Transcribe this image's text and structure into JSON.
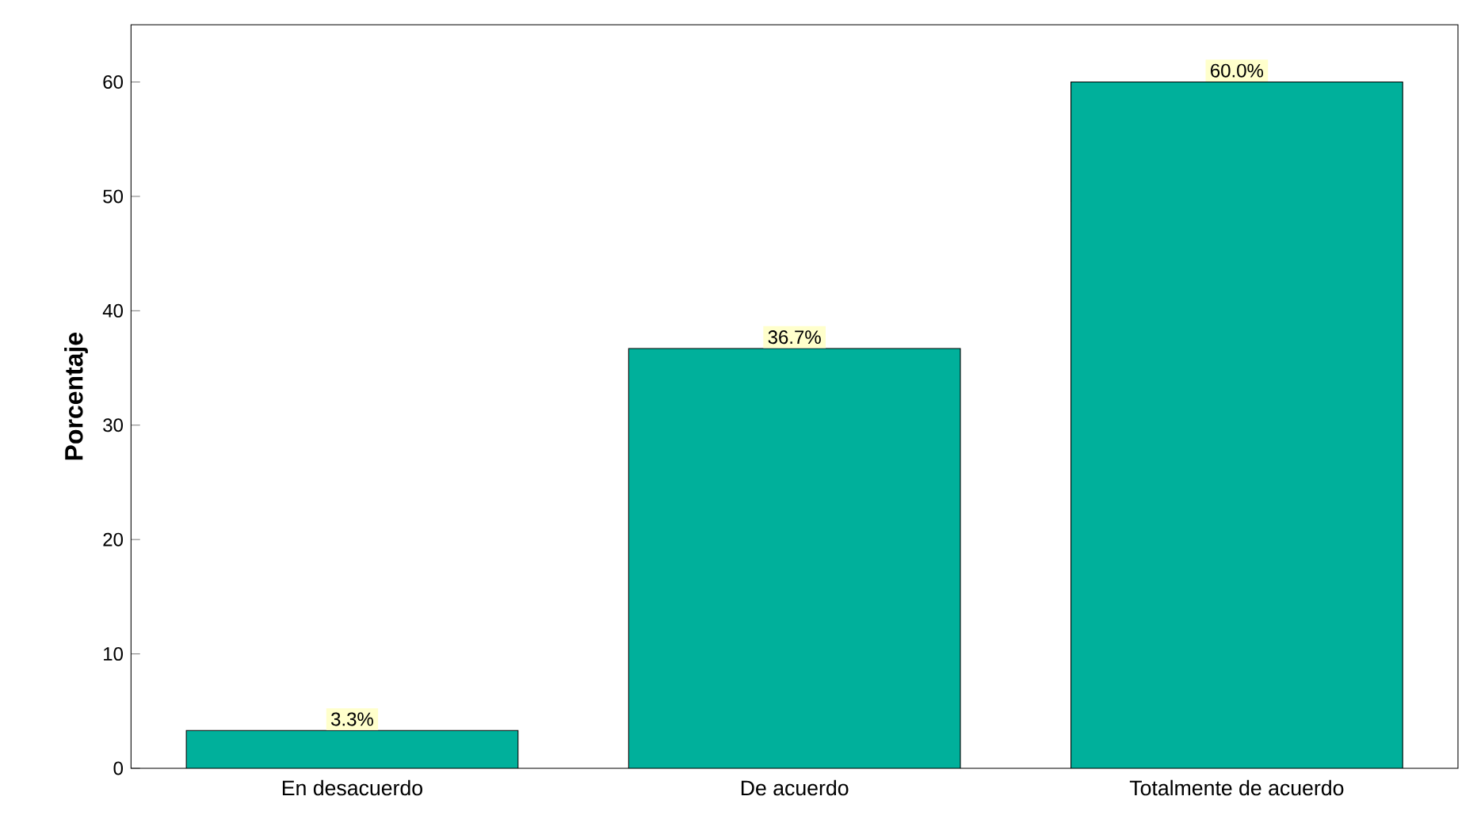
{
  "chart_data": {
    "type": "bar",
    "ylabel": "Porcentaje",
    "categories": [
      "En desacuerdo",
      "De acuerdo",
      "Totalmente de acuerdo"
    ],
    "values": [
      3.3,
      36.7,
      60.0
    ],
    "value_labels": [
      "3.3%",
      "36.7%",
      "60.0%"
    ],
    "color": "#00b09b",
    "ylim": [
      0,
      65
    ],
    "yticks": [
      0,
      10,
      20,
      30,
      40,
      50,
      60
    ],
    "grid": false
  }
}
